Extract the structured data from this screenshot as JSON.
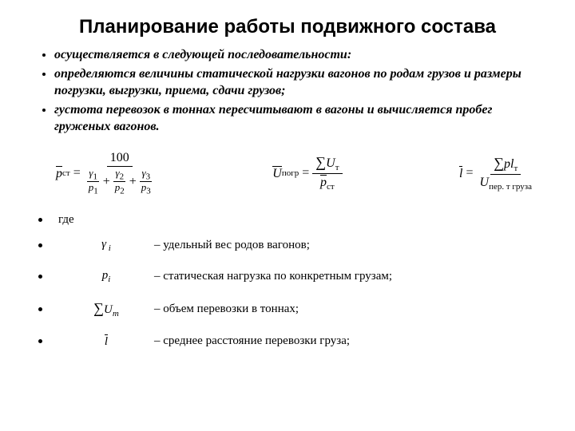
{
  "title": "Планирование работы подвижного состава",
  "bullets": [
    "осуществляется в следующей последовательности:",
    "определяются величины статической нагрузки вагонов по родам грузов и размеры погрузки, выгрузки, приема, сдачи грузов;",
    "густота перевозок в тоннах пересчитывают в вагоны и вычисляется пробег груженых вагонов."
  ],
  "formula1": {
    "lhs_sym": "p",
    "lhs_sub": "ст",
    "num": "100",
    "den_g1": "γ",
    "den_g1s": "1",
    "den_p1": "p",
    "den_p1s": "1",
    "den_g2": "γ",
    "den_g2s": "2",
    "den_p2": "p",
    "den_p2s": "2",
    "den_g3": "γ",
    "den_g3s": "3",
    "den_p3": "p",
    "den_p3s": "3"
  },
  "formula2": {
    "lhs_sym": "U",
    "lhs_sub": "погр",
    "num_sum": "∑",
    "num_sym": "U",
    "num_sub": "т",
    "den_sym": "p",
    "den_sub": "ст"
  },
  "formula3": {
    "lhs_sym": "l",
    "num_sum": "∑",
    "num_sym": "pl",
    "num_sub": "т",
    "den_sym": "U",
    "den_sub": "пер. т груза"
  },
  "where": "где",
  "defs": [
    {
      "sym_html": "<span class='it'>γ<span class='sub'> i</span></span>",
      "desc": "–  удельный вес родов вагонов;"
    },
    {
      "sym_html": "<span class='it'>p<span class='sub'>i</span></span>",
      "desc": "– статическая нагрузка по конкретным грузам;"
    },
    {
      "sym_html": "<span class='sum'>∑</span><span class='it'>U</span><span class='sub'>т</span>",
      "desc": "– объем перевозки в тоннах;"
    },
    {
      "sym_html": "<span class='bar it'>l</span>",
      "desc": "– среднее расстояние перевозки груза;"
    }
  ]
}
